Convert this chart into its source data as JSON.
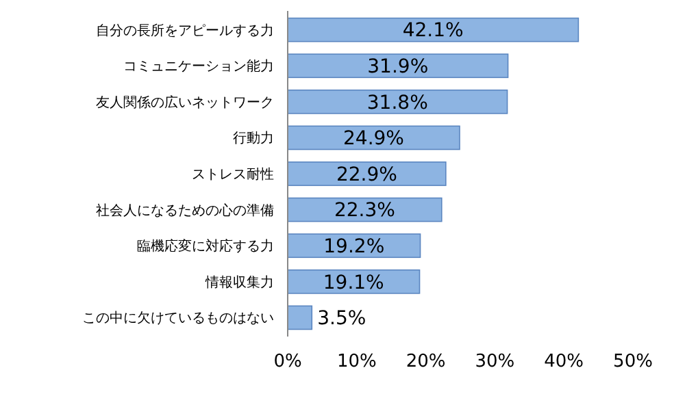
{
  "chart_data": {
    "type": "bar",
    "orientation": "horizontal",
    "categories": [
      "自分の長所をアピールする力",
      "コミュニケーション能力",
      "友人関係の広いネットワーク",
      "行動力",
      "ストレス耐性",
      "社会人になるための心の準備",
      "臨機応変に対応する力",
      "情報収集力",
      "この中に欠けているものはない"
    ],
    "values": [
      42.1,
      31.9,
      31.8,
      24.9,
      22.9,
      22.3,
      19.2,
      19.1,
      3.5
    ],
    "value_labels": [
      "42.1%",
      "31.9%",
      "31.8%",
      "24.9%",
      "22.9%",
      "22.3%",
      "19.2%",
      "19.1%",
      "3.5%"
    ],
    "color": "#8db4e2",
    "xlim": [
      0,
      50
    ],
    "xticks": [
      {
        "value": 0,
        "label": "0%"
      },
      {
        "value": 10,
        "label": "10%"
      },
      {
        "value": 20,
        "label": "20%"
      },
      {
        "value": 30,
        "label": "30%"
      },
      {
        "value": 40,
        "label": "40%"
      },
      {
        "value": 50,
        "label": "50%"
      }
    ],
    "grid": false
  }
}
